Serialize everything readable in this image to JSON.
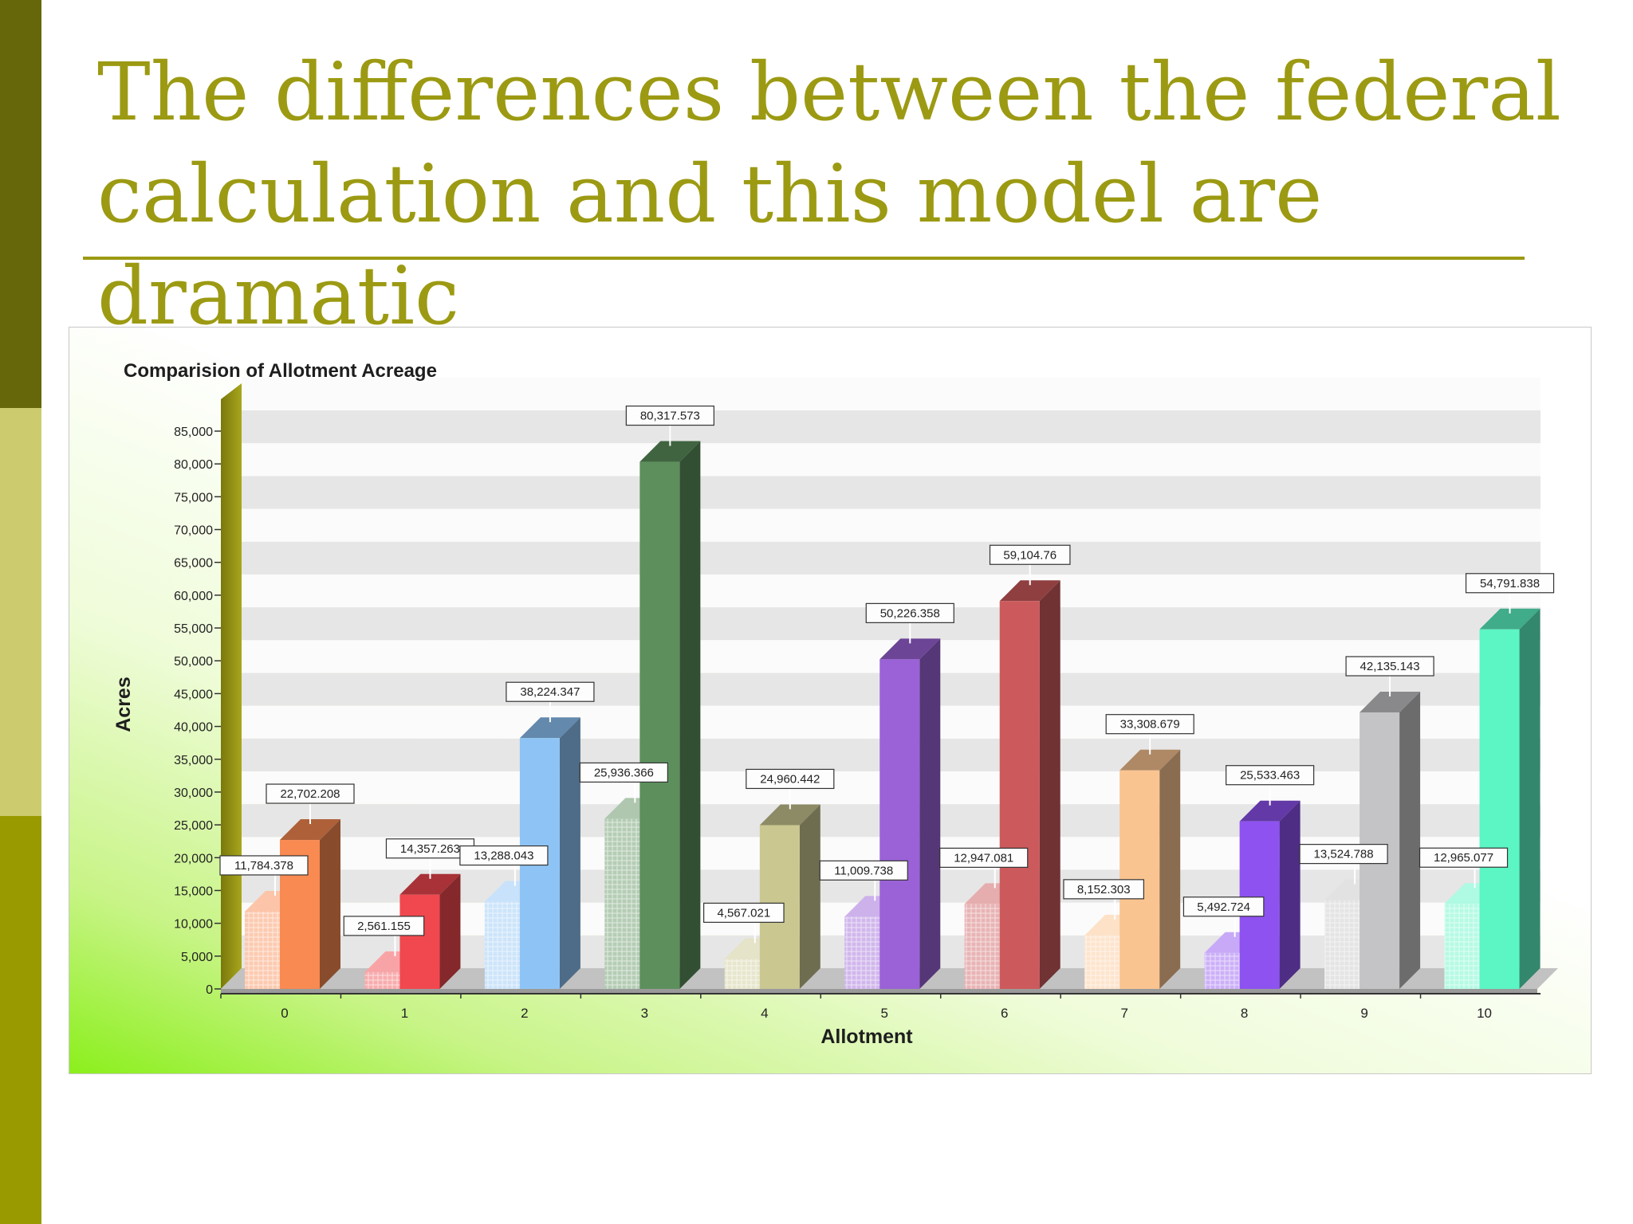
{
  "slide": {
    "title": "The differences between the federal calculation and this model are dramatic"
  },
  "colors": {
    "title": "#9c9a12",
    "band_top": "#66660a",
    "band_mid": "#cccc6e",
    "band_bottom": "#999900"
  },
  "chart_data": {
    "type": "bar",
    "title": "Comparision of Allotment Acreage",
    "xlabel": "Allotment",
    "ylabel": "Acres",
    "ylim": [
      0,
      85000
    ],
    "yticks": [
      0,
      5000,
      10000,
      15000,
      20000,
      25000,
      30000,
      35000,
      40000,
      45000,
      50000,
      55000,
      60000,
      65000,
      70000,
      75000,
      80000,
      85000
    ],
    "ytick_labels": [
      "0",
      "5,000",
      "10,000",
      "15,000",
      "20,000",
      "25,000",
      "30,000",
      "35,000",
      "40,000",
      "45,000",
      "50,000",
      "55,000",
      "60,000",
      "65,000",
      "70,000",
      "75,000",
      "80,000",
      "85,000"
    ],
    "grid": "horizontal bands",
    "legend": "none",
    "categories": [
      "0",
      "1",
      "2",
      "3",
      "4",
      "5",
      "6",
      "7",
      "8",
      "9",
      "10"
    ],
    "series": [
      {
        "values": [
          11784.378,
          2561.155,
          13288.043,
          25936.366,
          4567.021,
          11009.738,
          12947.081,
          8152.303,
          5492.724,
          13524.788,
          12965.077
        ],
        "labels": [
          "11,784.378",
          "2,561.155",
          "13,288.043",
          "25,936.366",
          "4,567.021",
          "11,009.738",
          "12,947.081",
          "8,152.303",
          "5,492.724",
          "13,524.788",
          "12,965.077"
        ],
        "style": "hatched"
      },
      {
        "values": [
          22702.208,
          14357.263,
          38224.347,
          80317.573,
          24960.442,
          50226.358,
          59104.76,
          33308.679,
          25533.463,
          42135.143,
          54791.838
        ],
        "labels": [
          "22,702.208",
          "14,357.263",
          "38,224.347",
          "80,317.573",
          "24,960.442",
          "50,226.358",
          "59,104.76",
          "33,308.679",
          "25,533.463",
          "42,135.143",
          "54,791.838"
        ],
        "style": "solid"
      }
    ],
    "bar_colors": [
      "#f88a52",
      "#f0484e",
      "#8ec4f5",
      "#5c8f5c",
      "#cac791",
      "#9a62d6",
      "#cc5a5c",
      "#fac491",
      "#8e52f0",
      "#c4c4c6",
      "#5cf5c4"
    ]
  }
}
